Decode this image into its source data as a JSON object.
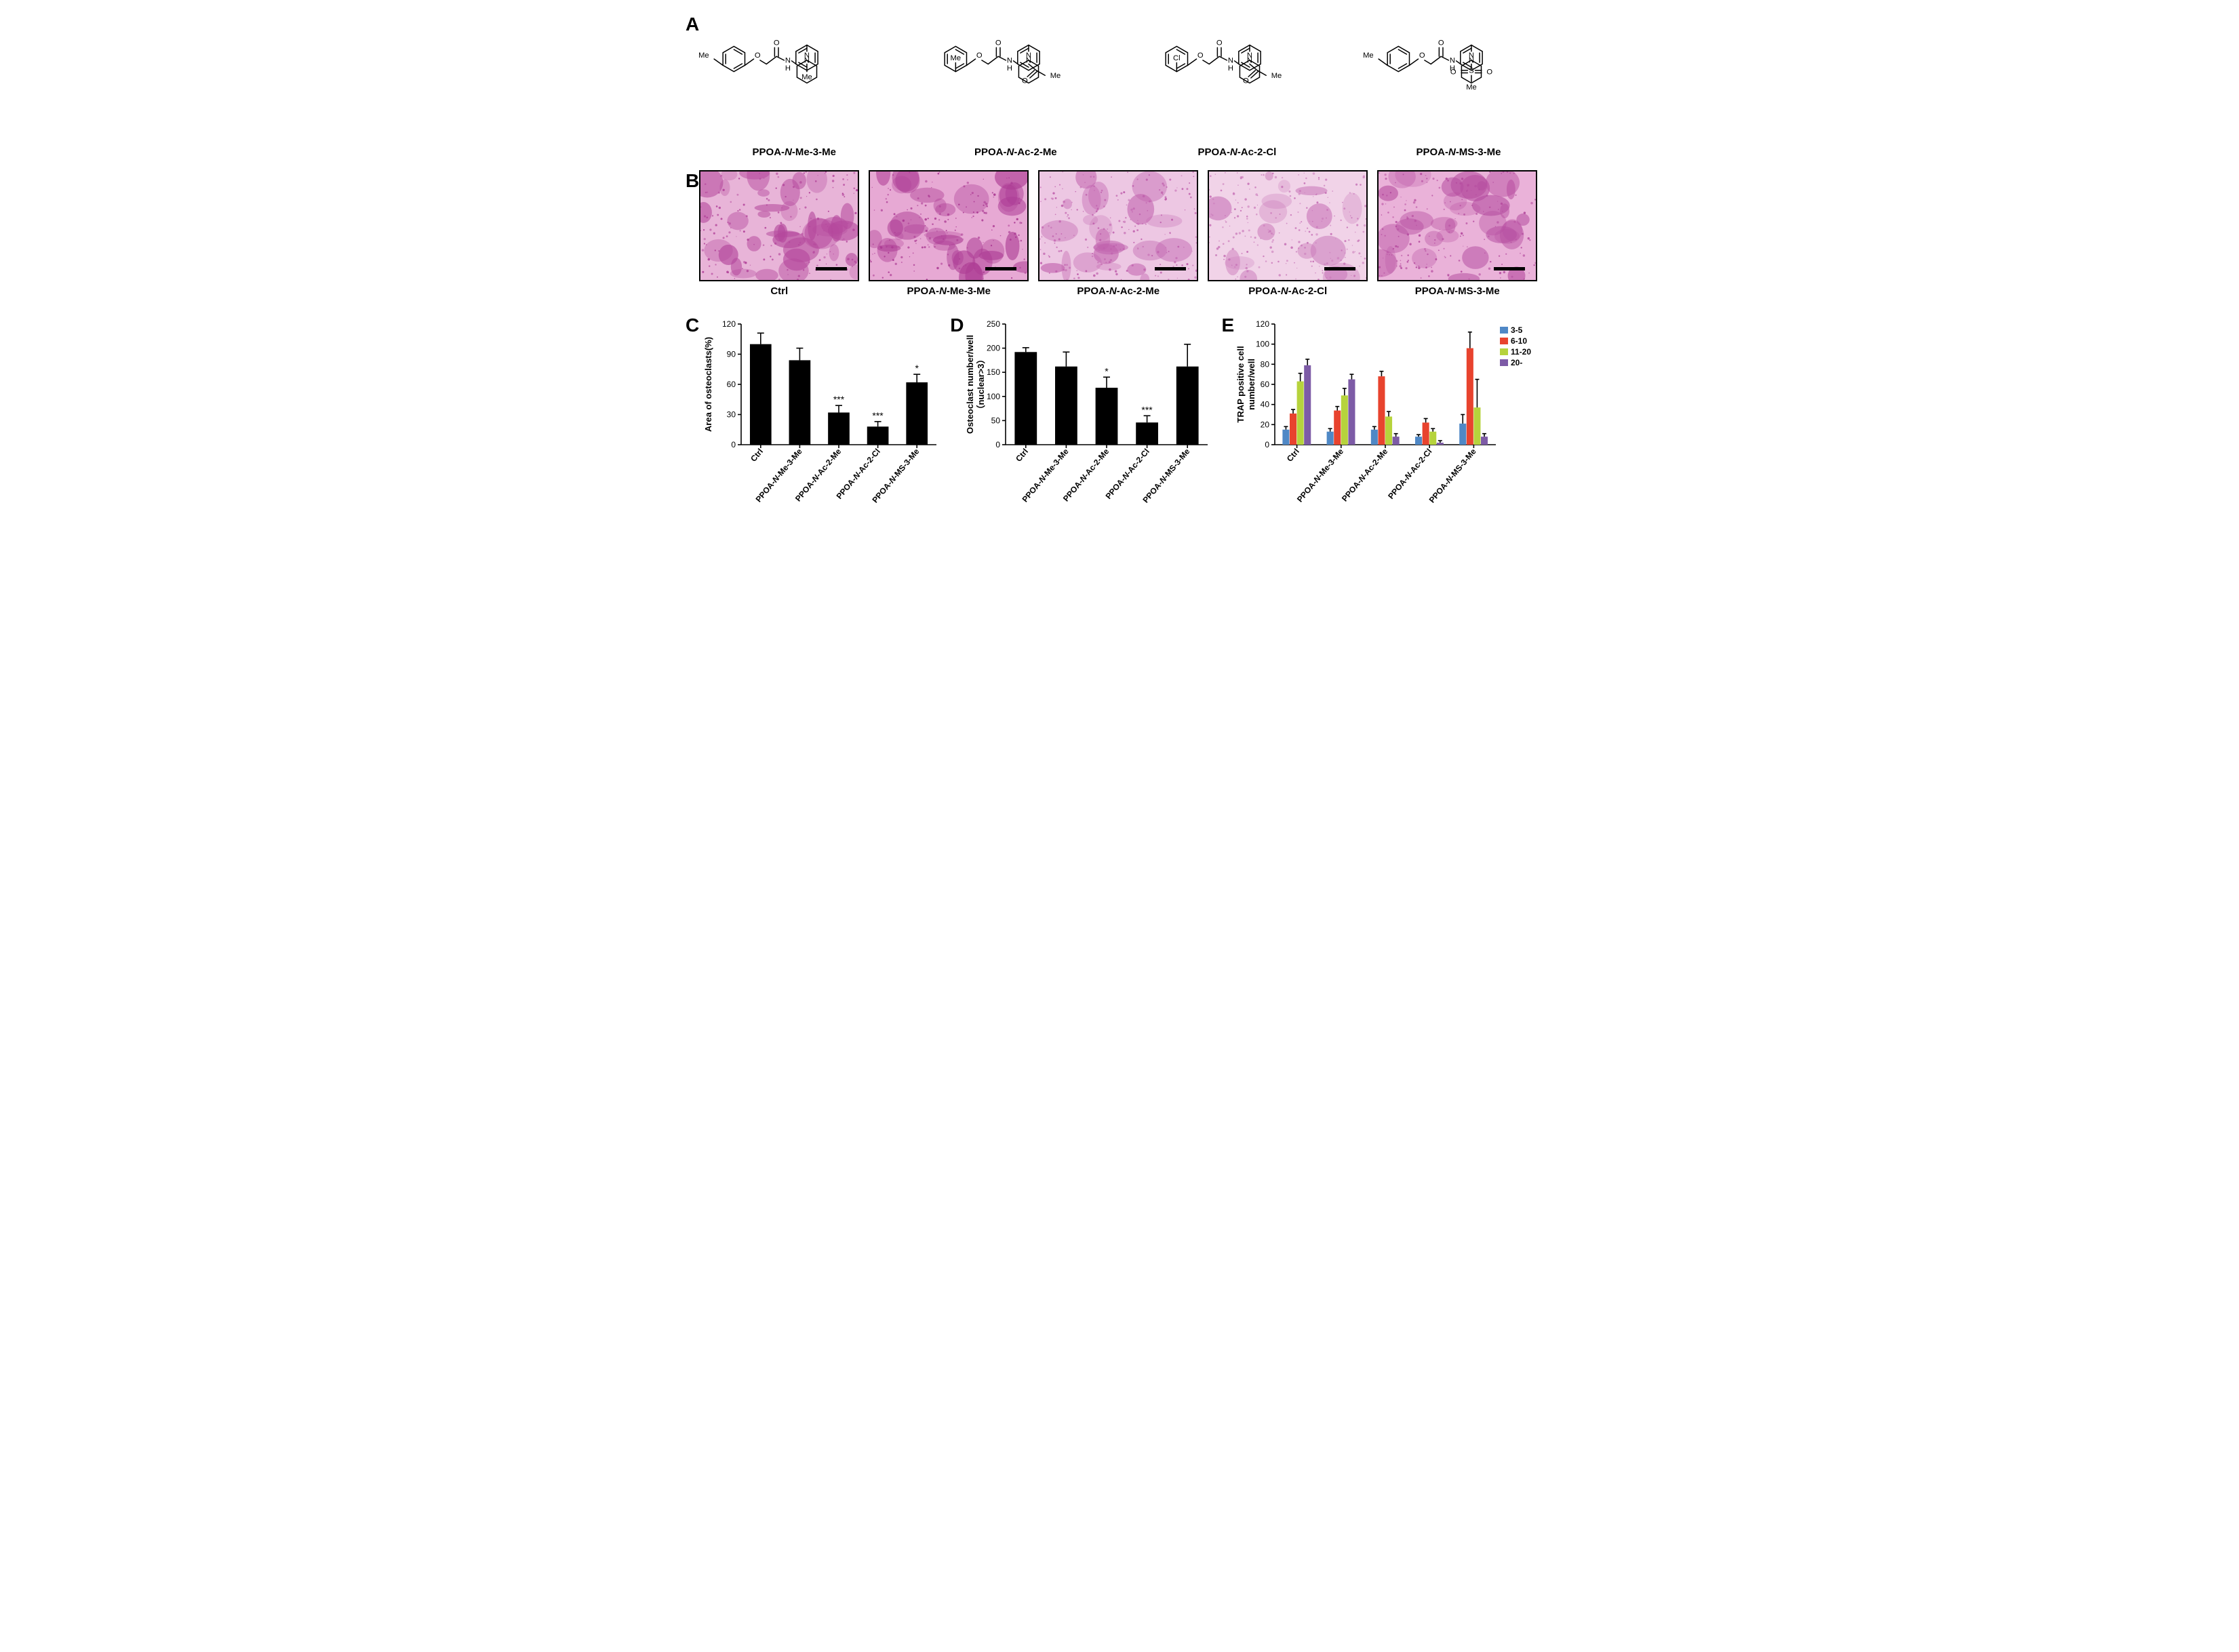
{
  "labels": {
    "A": "A",
    "B": "B",
    "C": "C",
    "D": "D",
    "E": "E"
  },
  "panelA": {
    "compounds": [
      {
        "name": "PPOA-N-Me-3-Me",
        "left_sub": "Me",
        "left_sub_pos": "meta",
        "piperazine_sub": "Me",
        "piperazine_type": "methyl"
      },
      {
        "name": "PPOA-N-Ac-2-Me",
        "left_sub": "Me",
        "left_sub_pos": "ortho",
        "piperazine_sub": "Me",
        "piperazine_type": "acetyl"
      },
      {
        "name": "PPOA-N-Ac-2-Cl",
        "left_sub": "Cl",
        "left_sub_pos": "ortho",
        "piperazine_sub": "Me",
        "piperazine_type": "acetyl"
      },
      {
        "name": "PPOA-N-MS-3-Me",
        "left_sub": "Me",
        "left_sub_pos": "meta",
        "piperazine_sub": "Me",
        "piperazine_type": "sulfonyl"
      }
    ],
    "line_color": "#000000",
    "text_color": "#000000",
    "font_size": 12
  },
  "panelB": {
    "images": [
      {
        "label": "Ctrl",
        "density": 0.95,
        "base": "#e8b4d8",
        "dark": "#b4479c"
      },
      {
        "label": "PPOA-N-Me-3-Me",
        "density": 0.9,
        "base": "#e7a9d4",
        "dark": "#ad3d95"
      },
      {
        "label": "PPOA-N-Ac-2-Me",
        "density": 0.55,
        "base": "#edc7e3",
        "dark": "#c061ad"
      },
      {
        "label": "PPOA-N-Ac-2-Cl",
        "density": 0.4,
        "base": "#f1d3e8",
        "dark": "#c977b9"
      },
      {
        "label": "PPOA-N-MS-3-Me",
        "density": 0.8,
        "base": "#eab2d9",
        "dark": "#b64ea0"
      }
    ],
    "border_color": "#000000",
    "scalebar_color": "#000000"
  },
  "panelC": {
    "ylabel": "Area of osteoclasts(%)",
    "categories": [
      "Ctrl",
      "PPOA-N-Me-3-Me",
      "PPOA-N-Ac-2-Me",
      "PPOA-N-Ac-2-Cl",
      "PPOA-N-MS-3-Me"
    ],
    "values": [
      100,
      84,
      32,
      18,
      62
    ],
    "errors": [
      11,
      12,
      7,
      5,
      8
    ],
    "significance": [
      "",
      "",
      "***",
      "***",
      "*"
    ],
    "ylim": [
      0,
      120
    ],
    "ytick_step": 30,
    "bar_color": "#000000",
    "axis_color": "#000000",
    "label_fontsize": 13,
    "tick_fontsize": 12,
    "bar_width": 0.55
  },
  "panelD": {
    "ylabel_line1": "Osteoclast number/well",
    "ylabel_line2": "（nuclear>3）",
    "categories": [
      "Ctrl",
      "PPOA-N-Me-3-Me",
      "PPOA-N-Ac-2-Me",
      "PPOA-N-Ac-2-Cl",
      "PPOA-N-MS-3-Me"
    ],
    "values": [
      192,
      162,
      118,
      46,
      162
    ],
    "errors": [
      9,
      30,
      22,
      14,
      46
    ],
    "significance": [
      "",
      "",
      "*",
      "***",
      ""
    ],
    "ylim": [
      0,
      250
    ],
    "ytick_step": 50,
    "bar_color": "#000000",
    "axis_color": "#000000",
    "label_fontsize": 13,
    "tick_fontsize": 12,
    "bar_width": 0.55
  },
  "panelE": {
    "ylabel_line1": "TRAP positive cell",
    "ylabel_line2": "number/well",
    "categories": [
      "Ctrl",
      "PPOA-N-Me-3-Me",
      "PPOA-N-Ac-2-Me",
      "PPOA-N-Ac-2-Cl",
      "PPOA-N-MS-3-Me"
    ],
    "series": [
      {
        "name": "3-5",
        "color": "#4f88c6",
        "values": [
          15,
          13,
          15,
          8,
          21
        ],
        "errors": [
          3,
          3,
          3,
          2,
          9
        ]
      },
      {
        "name": "6-10",
        "color": "#e8432e",
        "values": [
          31,
          34,
          68,
          22,
          96
        ],
        "errors": [
          4,
          4,
          5,
          4,
          16
        ]
      },
      {
        "name": "11-20",
        "color": "#b6d33c",
        "values": [
          63,
          49,
          28,
          13,
          37
        ],
        "errors": [
          8,
          7,
          5,
          3,
          28
        ]
      },
      {
        "name": "20-",
        "color": "#7d5ba6",
        "values": [
          79,
          65,
          8,
          2,
          8
        ],
        "errors": [
          6,
          5,
          3,
          2,
          3
        ]
      }
    ],
    "ylim": [
      0,
      120
    ],
    "ytick_step": 20,
    "axis_color": "#000000",
    "label_fontsize": 13,
    "tick_fontsize": 12,
    "legend_fontsize": 12,
    "group_gap": 0.35,
    "bar_width": 0.16
  }
}
